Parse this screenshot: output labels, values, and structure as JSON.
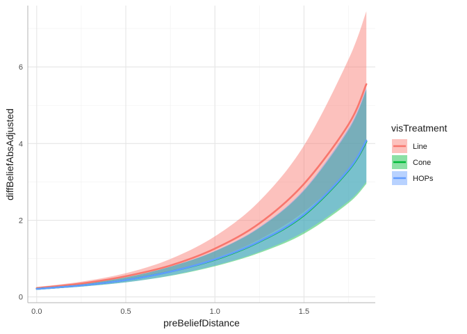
{
  "chart_data": {
    "type": "line",
    "xlabel": "preBeliefDistance",
    "ylabel": "diffBeliefAbsAdjusted",
    "xlim": [
      -0.05,
      1.9
    ],
    "ylim": [
      -0.15,
      7.6
    ],
    "xticks": [
      0.0,
      0.5,
      1.0,
      1.5
    ],
    "xtick_labels": [
      "0.0",
      "0.5",
      "1.0",
      "1.5"
    ],
    "yticks": [
      0,
      2,
      4,
      6
    ],
    "ytick_labels": [
      "0",
      "2",
      "4",
      "6"
    ],
    "grid": true,
    "legend": {
      "title": "visTreatment",
      "position": "right"
    },
    "series": [
      {
        "name": "Line",
        "color": "#f8766d",
        "fill_color": "#f8766d",
        "x": [
          0.0,
          0.25,
          0.5,
          0.75,
          1.0,
          1.25,
          1.5,
          1.75,
          1.85
        ],
        "y": [
          0.23,
          0.35,
          0.54,
          0.82,
          1.26,
          1.92,
          2.95,
          4.5,
          5.55
        ],
        "lower": [
          0.21,
          0.31,
          0.46,
          0.68,
          1.01,
          1.5,
          2.22,
          3.28,
          3.95
        ],
        "upper": [
          0.26,
          0.4,
          0.62,
          0.99,
          1.58,
          2.5,
          3.95,
          6.2,
          7.45
        ]
      },
      {
        "name": "Cone",
        "color": "#00ba38",
        "fill_color": "#00ba38",
        "x": [
          0.0,
          0.25,
          0.5,
          0.75,
          1.0,
          1.25,
          1.5,
          1.75,
          1.85
        ],
        "y": [
          0.21,
          0.3,
          0.44,
          0.66,
          0.97,
          1.44,
          2.13,
          3.3,
          4.05
        ],
        "lower": [
          0.19,
          0.27,
          0.38,
          0.55,
          0.8,
          1.15,
          1.65,
          2.45,
          2.95
        ],
        "upper": [
          0.23,
          0.34,
          0.51,
          0.79,
          1.19,
          1.8,
          2.77,
          4.35,
          5.4
        ]
      },
      {
        "name": "HOPs",
        "color": "#619cff",
        "fill_color": "#619cff",
        "x": [
          0.0,
          0.25,
          0.5,
          0.75,
          1.0,
          1.25,
          1.5,
          1.75,
          1.85
        ],
        "y": [
          0.21,
          0.3,
          0.44,
          0.66,
          0.98,
          1.45,
          2.15,
          3.32,
          4.08
        ],
        "lower": [
          0.19,
          0.27,
          0.38,
          0.56,
          0.82,
          1.18,
          1.7,
          2.5,
          3.0
        ],
        "upper": [
          0.23,
          0.34,
          0.51,
          0.79,
          1.2,
          1.82,
          2.8,
          4.4,
          5.45
        ]
      }
    ]
  }
}
